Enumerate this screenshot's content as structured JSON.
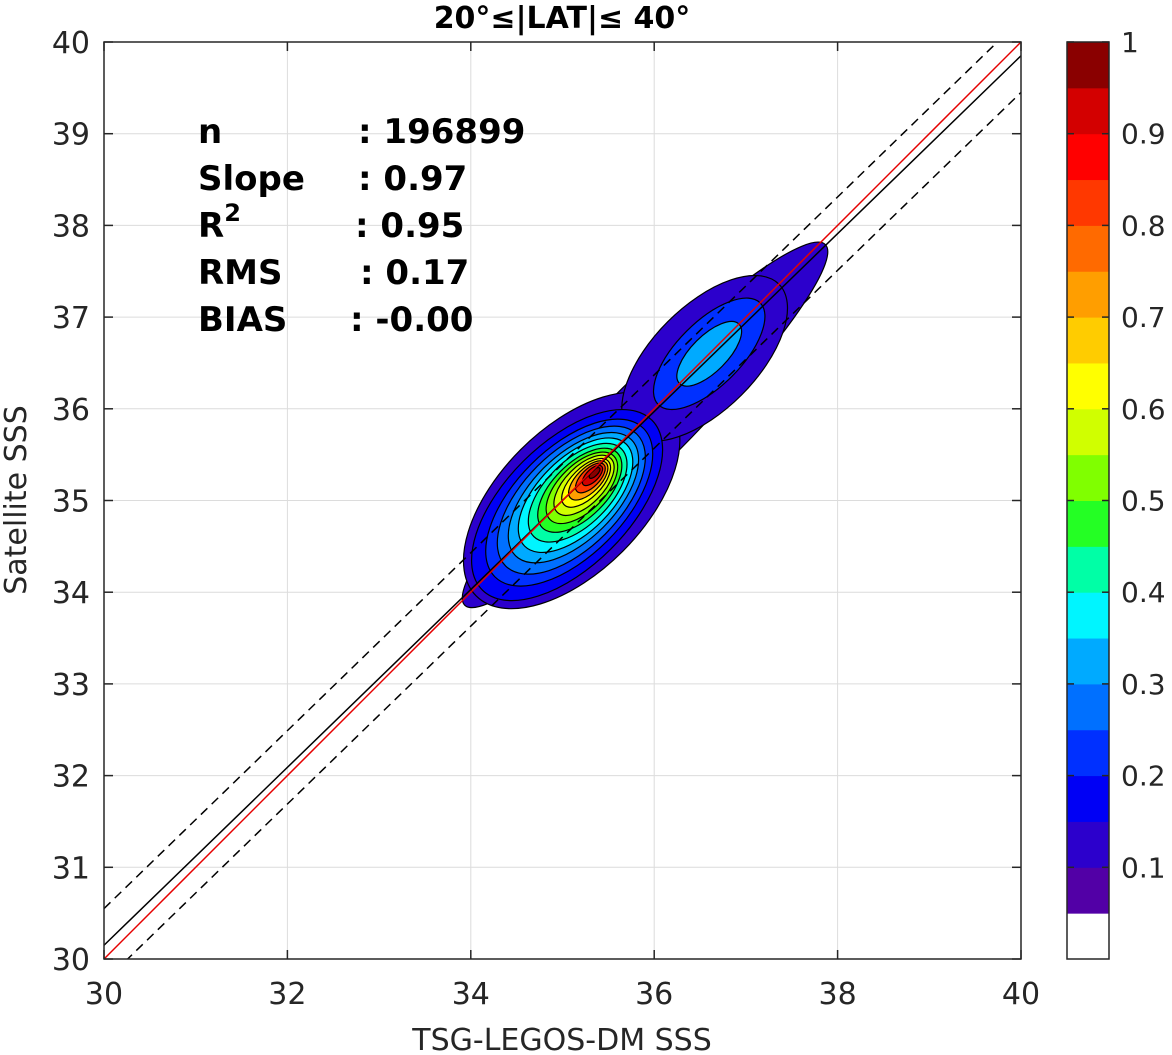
{
  "chart_data": {
    "type": "contour",
    "title": "20°≤|LAT|≤ 40°",
    "xlabel": "TSG-LEGOS-DM SSS",
    "ylabel": "Satellite SSS",
    "xlim": [
      30,
      40
    ],
    "ylim": [
      30,
      40
    ],
    "xticks": [
      "30",
      "32",
      "34",
      "36",
      "38",
      "40"
    ],
    "yticks": [
      "30",
      "31",
      "32",
      "33",
      "34",
      "35",
      "36",
      "37",
      "38",
      "39",
      "40"
    ],
    "grid": true,
    "stats": [
      {
        "label": "n",
        "value": ": 196899"
      },
      {
        "label": "Slope",
        "value": ": 0.97"
      },
      {
        "label": "R",
        "sup": "2",
        "value": ": 0.95"
      },
      {
        "label": "RMS",
        "value": ": 0.17"
      },
      {
        "label": "BIAS",
        "value": ": -0.00"
      }
    ],
    "lines": {
      "identity": {
        "slope": 1.0,
        "intercept": 0.0,
        "color": "#e60000"
      },
      "fit": {
        "slope": 0.97,
        "intercept": 1.05,
        "color": "#000000"
      },
      "upper_dashed": {
        "slope": 0.97,
        "intercept": 1.45
      },
      "lower_dashed": {
        "slope": 0.97,
        "intercept": 0.65
      }
    },
    "density_peaks": [
      {
        "x": 35.35,
        "y": 35.3,
        "level": 1.0
      },
      {
        "x": 36.55,
        "y": 36.55,
        "level": 0.35
      }
    ],
    "colorbar": {
      "ticks": [
        "0.1",
        "0.2",
        "0.3",
        "0.4",
        "0.5",
        "0.6",
        "0.7",
        "0.8",
        "0.9",
        "1"
      ],
      "colors": [
        "#ffffff",
        "#5200a6",
        "#2c00cc",
        "#0000f5",
        "#0030ff",
        "#0070ff",
        "#00aaff",
        "#00f5ff",
        "#00ffa6",
        "#24ff24",
        "#80ff00",
        "#d0ff00",
        "#ffff00",
        "#ffcc00",
        "#ff9e00",
        "#ff6a00",
        "#ff3800",
        "#ff0000",
        "#d30000",
        "#8a0000"
      ]
    }
  }
}
